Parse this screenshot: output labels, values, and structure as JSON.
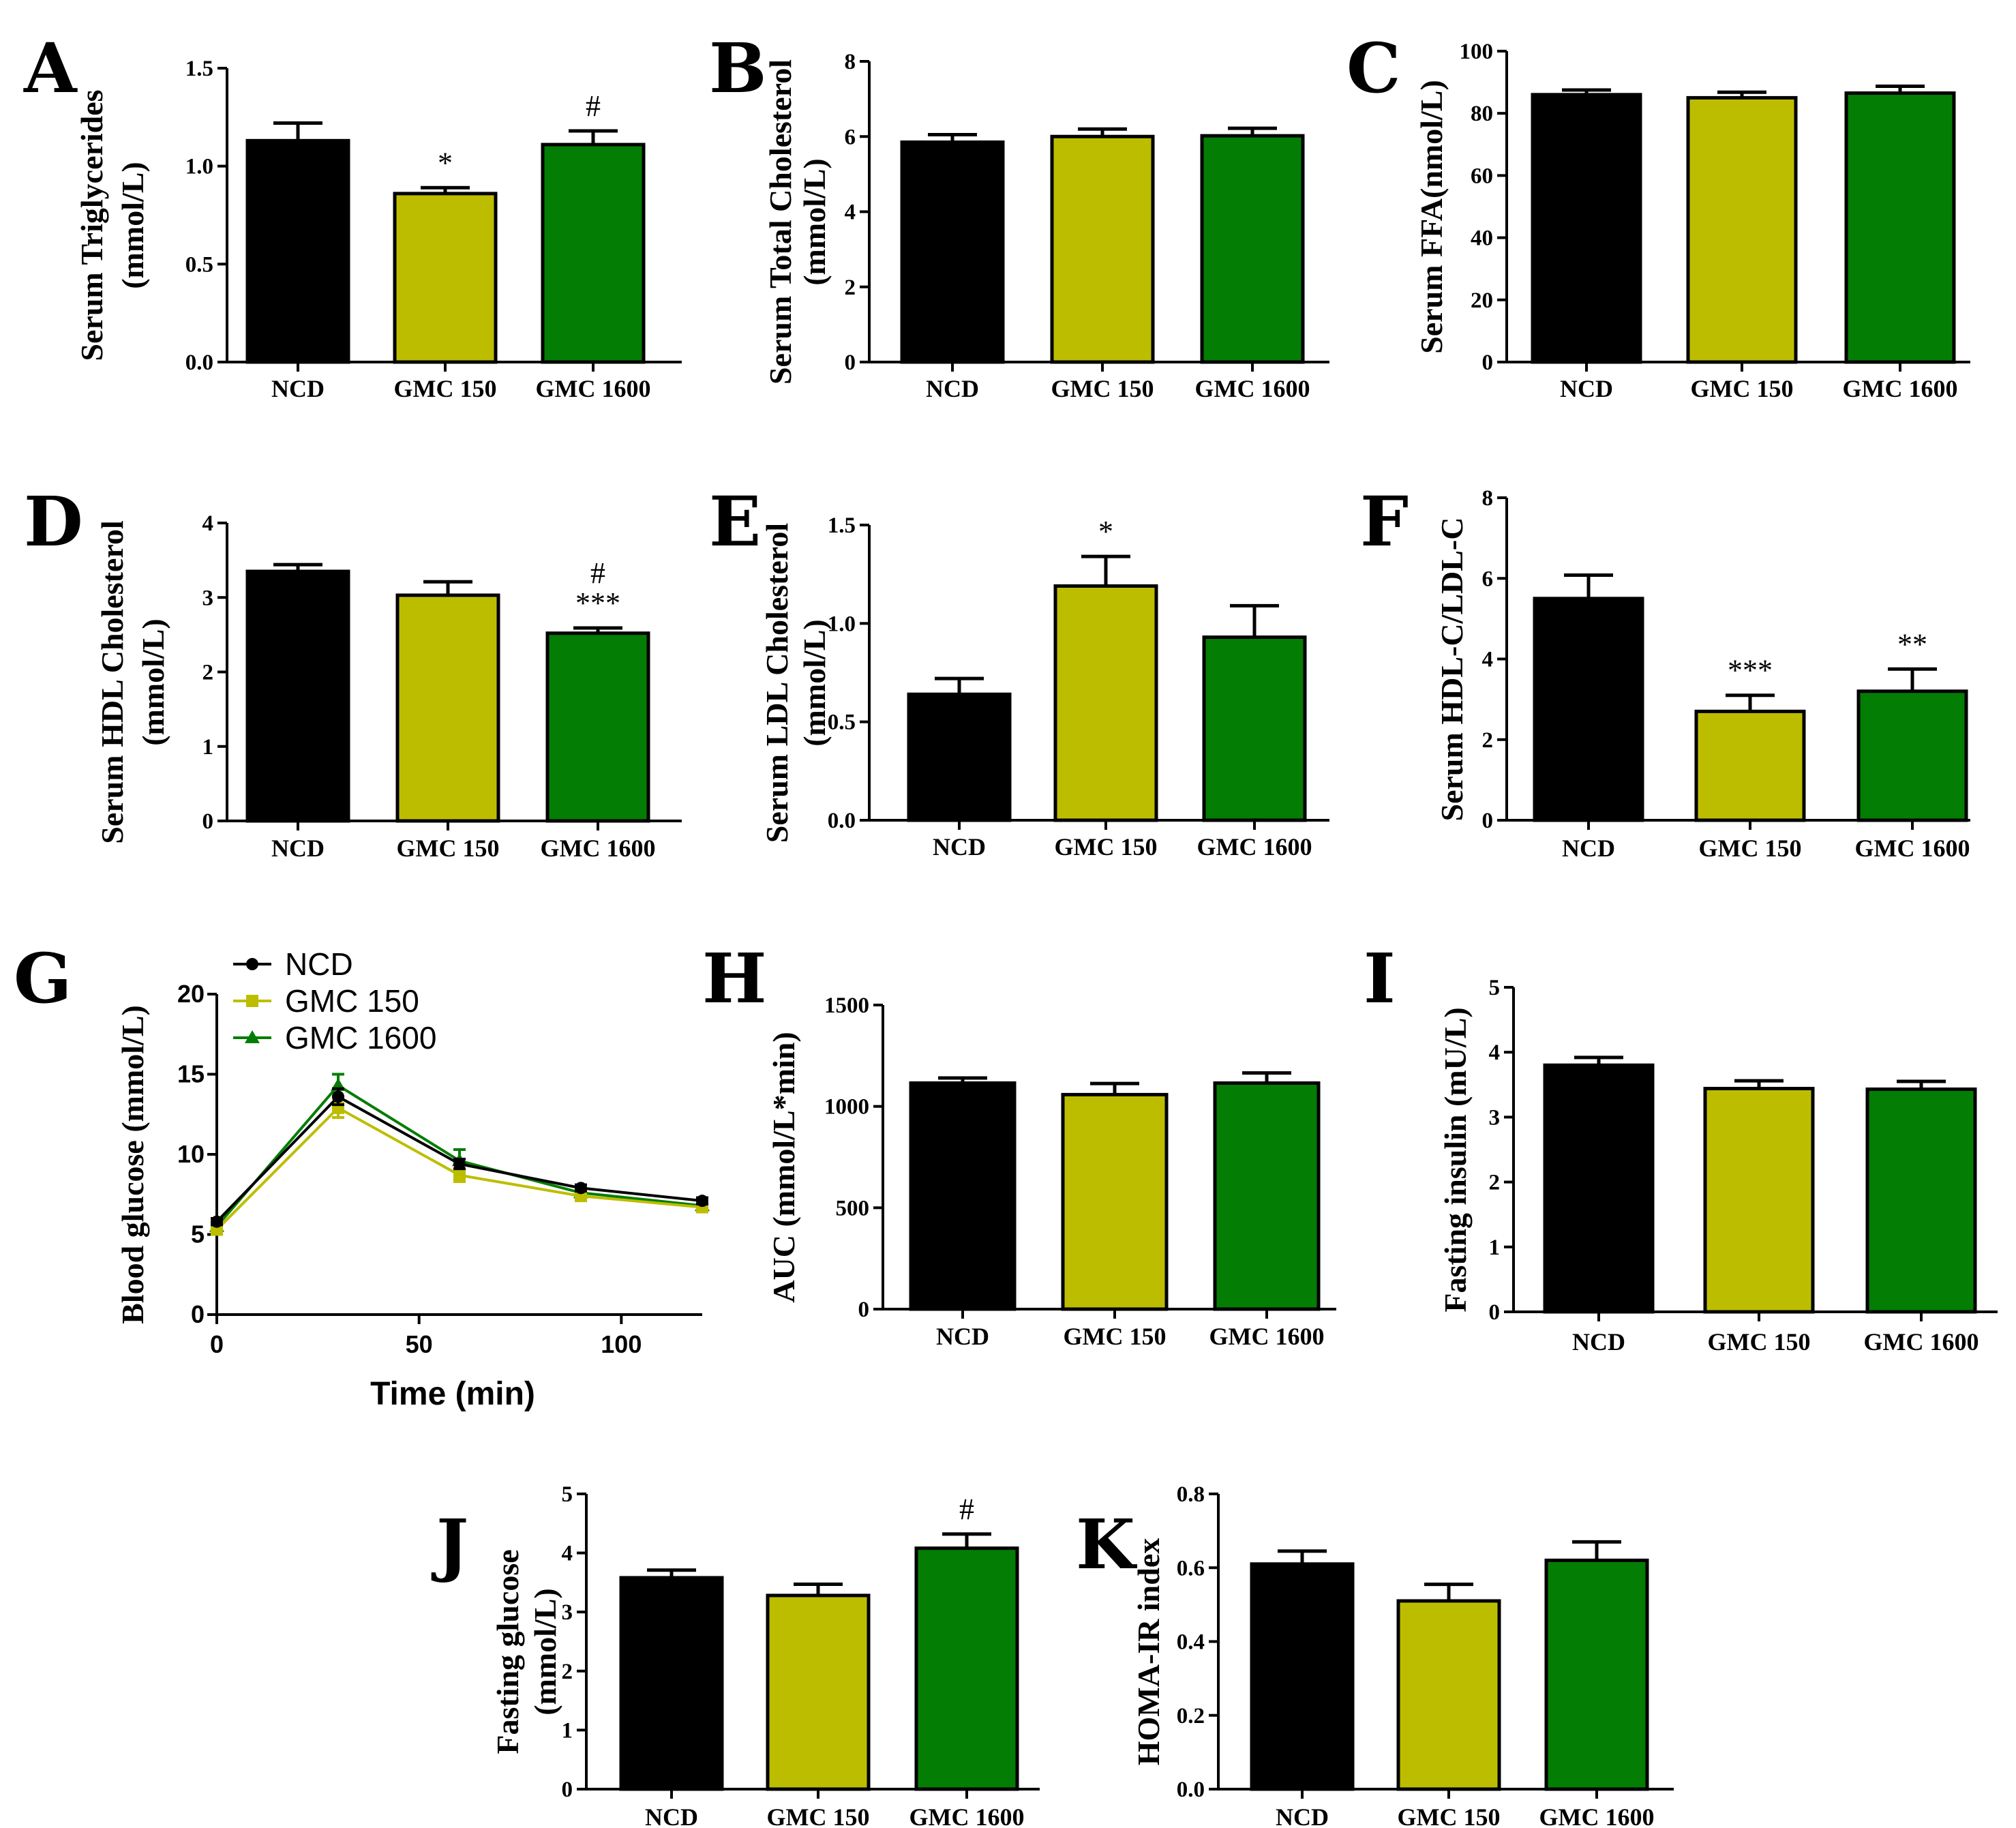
{
  "colors": {
    "NCD": "#000000",
    "GMC 150": "#bdbd00",
    "GMC 1600": "#037d03"
  },
  "chart_data": [
    {
      "id": "A",
      "type": "bar",
      "letter": "A",
      "ylabel": [
        "Serum Triglycerides",
        "(mmol/L)"
      ],
      "categories": [
        "NCD",
        "GMC 150",
        "GMC 1600"
      ],
      "values": [
        1.13,
        0.86,
        1.11
      ],
      "errors": [
        0.09,
        0.03,
        0.07
      ],
      "ylim": [
        0,
        1.5
      ],
      "ticks": [
        "0.0",
        "0.5",
        "1.0",
        "1.5"
      ],
      "tick_values": [
        0,
        0.5,
        1.0,
        1.5
      ],
      "annotations": [
        [],
        [
          "*"
        ],
        [
          "#"
        ]
      ]
    },
    {
      "id": "B",
      "type": "bar",
      "letter": "B",
      "ylabel": [
        "Serum Total Cholesterol",
        "(mmol/L)"
      ],
      "categories": [
        "NCD",
        "GMC 150",
        "GMC 1600"
      ],
      "values": [
        5.85,
        6.0,
        6.02
      ],
      "errors": [
        0.2,
        0.2,
        0.2
      ],
      "ylim": [
        0,
        8
      ],
      "ticks": [
        "0",
        "2",
        "4",
        "6",
        "8"
      ],
      "tick_values": [
        0,
        2,
        4,
        6,
        8
      ],
      "annotations": [
        [],
        [],
        []
      ]
    },
    {
      "id": "C",
      "type": "bar",
      "letter": "C",
      "ylabel": [
        "Serum FFA(nmol/L)"
      ],
      "categories": [
        "NCD",
        "GMC 150",
        "GMC 1600"
      ],
      "values": [
        86,
        85,
        86.5
      ],
      "errors": [
        1.5,
        1.8,
        2.2
      ],
      "ylim": [
        0,
        100
      ],
      "ticks": [
        "0",
        "20",
        "40",
        "60",
        "80",
        "100"
      ],
      "tick_values": [
        0,
        20,
        40,
        60,
        80,
        100
      ],
      "annotations": [
        [],
        [],
        []
      ]
    },
    {
      "id": "D",
      "type": "bar",
      "letter": "D",
      "ylabel": [
        "Serum HDL Cholesterol",
        "(mmol/L)"
      ],
      "categories": [
        "NCD",
        "GMC 150",
        "GMC 1600"
      ],
      "values": [
        3.35,
        3.03,
        2.52
      ],
      "errors": [
        0.09,
        0.18,
        0.07
      ],
      "ylim": [
        0,
        4
      ],
      "ticks": [
        "0",
        "1",
        "2",
        "3",
        "4"
      ],
      "tick_values": [
        0,
        1,
        2,
        3,
        4
      ],
      "annotations": [
        [],
        [],
        [
          "***",
          "#"
        ]
      ]
    },
    {
      "id": "E",
      "type": "bar",
      "letter": "E",
      "ylabel": [
        "Serum LDL Cholesterol",
        "(mmol/L)"
      ],
      "categories": [
        "NCD",
        "GMC 150",
        "GMC 1600"
      ],
      "values": [
        0.64,
        1.19,
        0.93
      ],
      "errors": [
        0.08,
        0.15,
        0.16
      ],
      "ylim": [
        0,
        1.5
      ],
      "ticks": [
        "0.0",
        "0.5",
        "1.0",
        "1.5"
      ],
      "tick_values": [
        0,
        0.5,
        1.0,
        1.5
      ],
      "annotations": [
        [],
        [
          "*"
        ],
        []
      ]
    },
    {
      "id": "F",
      "type": "bar",
      "letter": "F",
      "ylabel": [
        "Serum HDL-C/LDL-C"
      ],
      "categories": [
        "NCD",
        "GMC 150",
        "GMC 1600"
      ],
      "values": [
        5.5,
        2.7,
        3.2
      ],
      "errors": [
        0.58,
        0.4,
        0.55
      ],
      "ylim": [
        0,
        8
      ],
      "ticks": [
        "0",
        "2",
        "4",
        "6",
        "8"
      ],
      "tick_values": [
        0,
        2,
        4,
        6,
        8
      ],
      "annotations": [
        [],
        [
          "***"
        ],
        [
          "**"
        ]
      ]
    },
    {
      "id": "G",
      "type": "line",
      "letter": "G",
      "xlabel": "Time (min)",
      "ylabel": [
        "Blood glucose (mmol/L)"
      ],
      "x": [
        0,
        30,
        60,
        90,
        120
      ],
      "xlim": [
        0,
        120
      ],
      "ylim": [
        0,
        20
      ],
      "xticks": [
        "0",
        "50",
        "100"
      ],
      "xtick_values": [
        0,
        50,
        100
      ],
      "yticks": [
        "0",
        "5",
        "10",
        "15",
        "20"
      ],
      "ytick_values": [
        0,
        5,
        10,
        15,
        20
      ],
      "series": [
        {
          "name": "NCD",
          "values": [
            5.8,
            13.6,
            9.4,
            7.9,
            7.1
          ],
          "errors": [
            0.2,
            0.5,
            0.3,
            0.2,
            0.2
          ],
          "marker": "circle"
        },
        {
          "name": "GMC 150",
          "values": [
            5.3,
            12.9,
            8.7,
            7.4,
            6.7
          ],
          "errors": [
            0.2,
            0.6,
            0.4,
            0.2,
            0.2
          ],
          "marker": "square"
        },
        {
          "name": "GMC 1600",
          "values": [
            5.5,
            14.3,
            9.6,
            7.6,
            6.8
          ],
          "errors": [
            0.2,
            0.7,
            0.7,
            0.2,
            0.2
          ],
          "marker": "triangle"
        }
      ],
      "legend": [
        "NCD",
        "GMC 150",
        "GMC 1600"
      ]
    },
    {
      "id": "H",
      "type": "bar",
      "letter": "H",
      "ylabel": [
        "AUC (mmol/L*min)"
      ],
      "categories": [
        "NCD",
        "GMC 150",
        "GMC 1600"
      ],
      "values": [
        1115,
        1058,
        1115
      ],
      "errors": [
        25,
        55,
        50
      ],
      "ylim": [
        0,
        1500
      ],
      "ticks": [
        "0",
        "500",
        "1000",
        "1500"
      ],
      "tick_values": [
        0,
        500,
        1000,
        1500
      ],
      "annotations": [
        [],
        [],
        []
      ]
    },
    {
      "id": "I",
      "type": "bar",
      "letter": "I",
      "ylabel": [
        "Fasting insulin (mU/L)"
      ],
      "categories": [
        "NCD",
        "GMC 150",
        "GMC 1600"
      ],
      "values": [
        3.8,
        3.44,
        3.43
      ],
      "errors": [
        0.12,
        0.12,
        0.12
      ],
      "ylim": [
        0,
        5
      ],
      "ticks": [
        "0",
        "1",
        "2",
        "3",
        "4",
        "5"
      ],
      "tick_values": [
        0,
        1,
        2,
        3,
        4,
        5
      ],
      "annotations": [
        [],
        [],
        []
      ]
    },
    {
      "id": "J",
      "type": "bar",
      "letter": "J",
      "ylabel": [
        "Fasting glucose",
        "(mmol/L)"
      ],
      "categories": [
        "NCD",
        "GMC 150",
        "GMC 1600"
      ],
      "values": [
        3.58,
        3.28,
        4.08
      ],
      "errors": [
        0.13,
        0.19,
        0.24
      ],
      "ylim": [
        0,
        5
      ],
      "ticks": [
        "0",
        "1",
        "2",
        "3",
        "4",
        "5"
      ],
      "tick_values": [
        0,
        1,
        2,
        3,
        4,
        5
      ],
      "annotations": [
        [],
        [],
        [
          "#"
        ]
      ]
    },
    {
      "id": "K",
      "type": "bar",
      "letter": "K",
      "ylabel": [
        "HOMA-IR index"
      ],
      "categories": [
        "NCD",
        "GMC 150",
        "GMC 1600"
      ],
      "values": [
        0.61,
        0.51,
        0.62
      ],
      "errors": [
        0.035,
        0.045,
        0.05
      ],
      "ylim": [
        0,
        0.8
      ],
      "ticks": [
        "0.0",
        "0.2",
        "0.4",
        "0.6",
        "0.8"
      ],
      "tick_values": [
        0,
        0.2,
        0.4,
        0.6,
        0.8
      ],
      "annotations": [
        [],
        [],
        []
      ]
    }
  ]
}
